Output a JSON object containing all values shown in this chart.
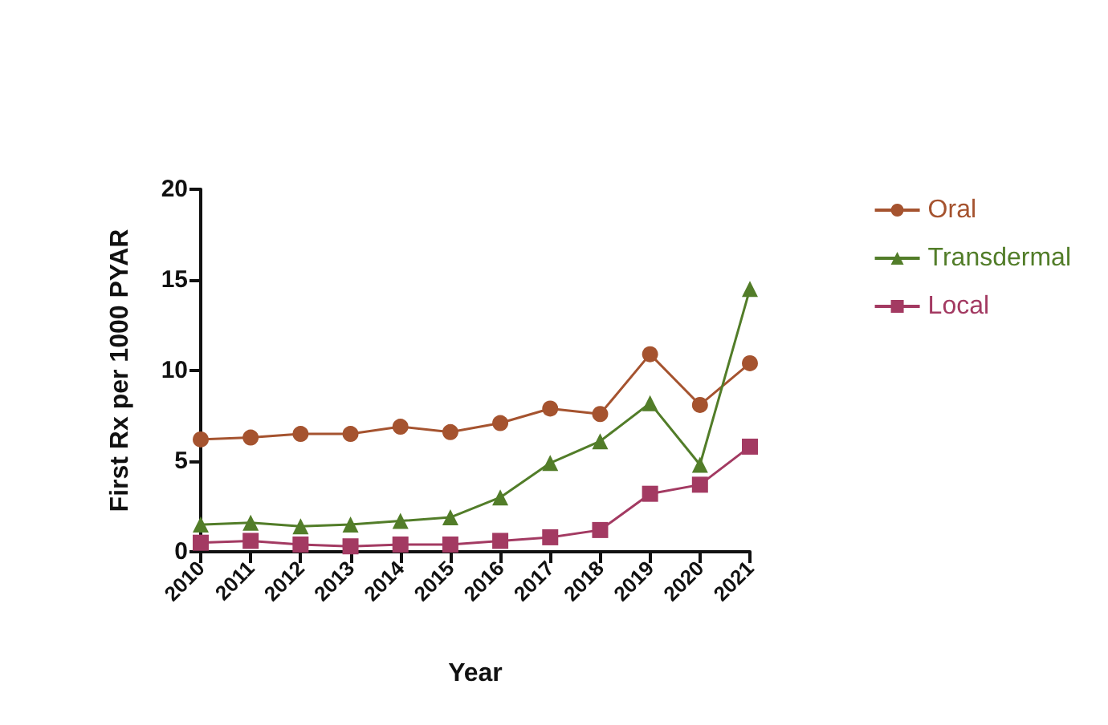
{
  "chart_data": {
    "type": "line",
    "xlabel": "Year",
    "ylabel": "First Rx per 1000 PYAR",
    "categories": [
      "2010",
      "2011",
      "2012",
      "2013",
      "2014",
      "2015",
      "2016",
      "2017",
      "2018",
      "2019",
      "2020",
      "2021"
    ],
    "series": [
      {
        "name": "Oral",
        "color": "#a5532f",
        "marker": "circle",
        "values": [
          6.2,
          6.3,
          6.5,
          6.5,
          6.9,
          6.6,
          7.1,
          7.9,
          7.6,
          10.9,
          8.1,
          10.4
        ]
      },
      {
        "name": "Transdermal",
        "color": "#527d29",
        "marker": "triangle",
        "values": [
          1.5,
          1.6,
          1.4,
          1.5,
          1.7,
          1.9,
          3.0,
          4.9,
          6.1,
          8.2,
          4.8,
          14.5
        ]
      },
      {
        "name": "Local",
        "color": "#a33a62",
        "marker": "square",
        "values": [
          0.5,
          0.6,
          0.4,
          0.3,
          0.4,
          0.4,
          0.6,
          0.8,
          1.2,
          3.2,
          3.7,
          5.8
        ]
      }
    ],
    "ylim": [
      0,
      20
    ],
    "yticks": [
      0,
      5,
      10,
      15,
      20
    ],
    "grid": false,
    "legend": "top right",
    "line_style": "solid"
  }
}
